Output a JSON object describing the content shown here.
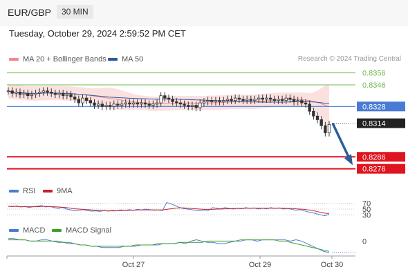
{
  "header": {
    "pair": "EUR/GBP",
    "timeframe": "30 MIN"
  },
  "datetime": "Tuesday, October 29, 2024 2:59:52 PM CET",
  "credit": "Research © 2024 Trading Central",
  "colors": {
    "up": "#333333",
    "down": "#333333",
    "bands": "#f7c6c6",
    "ma20": "#f08a8a",
    "ma50": "#2e5c9a",
    "support": "#e0141e",
    "resistance": "#6fb84a",
    "current": "#222222",
    "pivot": "#4a7bd4",
    "arrow": "#2e5c9a",
    "rsi": "#4a7bd4",
    "rsi_ma": "#cc1f2a",
    "macd": "#4a7bd4",
    "macd_signal": "#3f9e2a"
  },
  "chart_data": [
    {
      "type": "candlestick",
      "legend": [
        "MA 20 + Bollinger Bands",
        "MA 50"
      ],
      "ylim": [
        0.8266,
        0.8361
      ],
      "x_ticks": [
        "Oct 27",
        "Oct 29",
        "Oct 30"
      ],
      "resistance": [
        0.8356,
        0.8346
      ],
      "pivot": 0.8328,
      "current": 0.8314,
      "support": [
        0.8286,
        0.8276
      ],
      "price_labels": [
        "0.8356",
        "0.8346",
        "0.8328",
        "0.8314",
        "0.8286",
        "0.8276"
      ],
      "forecast": {
        "from": 0.8314,
        "to": 0.8279
      },
      "candles": [
        0.8341,
        0.8339,
        0.834,
        0.8338,
        0.8339,
        0.8337,
        0.8338,
        0.8339,
        0.834,
        0.8341,
        0.834,
        0.8339,
        0.8338,
        0.8339,
        0.8337,
        0.8338,
        0.8336,
        0.8334,
        0.8331,
        0.8335,
        0.8333,
        0.8331,
        0.8329,
        0.833,
        0.8328,
        0.8329,
        0.8328,
        0.833,
        0.8329,
        0.833,
        0.8331,
        0.833,
        0.8331,
        0.833,
        0.8331,
        0.833,
        0.8329,
        0.833,
        0.8331,
        0.8337,
        0.8335,
        0.8334,
        0.8332,
        0.8331,
        0.833,
        0.8329,
        0.8328,
        0.8329,
        0.8327,
        0.8331,
        0.8332,
        0.8333,
        0.8332,
        0.8333,
        0.8332,
        0.8333,
        0.8334,
        0.8333,
        0.8335,
        0.8334,
        0.8333,
        0.8334,
        0.8333,
        0.8334,
        0.8335,
        0.8334,
        0.8335,
        0.8334,
        0.8333,
        0.8334,
        0.8333,
        0.8335,
        0.8334,
        0.8332,
        0.8333,
        0.8331,
        0.833,
        0.8324,
        0.832,
        0.8317,
        0.8312,
        0.8306,
        0.8313
      ]
    },
    {
      "type": "line",
      "legend": [
        "RSI",
        "9MA"
      ],
      "y_ticks": [
        70,
        50,
        30
      ],
      "y_tick_labels": [
        "70",
        "50",
        "30"
      ],
      "ylim": [
        15,
        85
      ],
      "rsi": [
        60,
        58,
        61,
        57,
        59,
        55,
        58,
        60,
        62,
        57,
        59,
        55,
        52,
        56,
        50,
        47,
        44,
        46,
        48,
        45,
        43,
        44,
        42,
        45,
        43,
        46,
        44,
        47,
        45,
        48,
        46,
        49,
        47,
        50,
        48,
        46,
        47,
        45,
        72,
        68,
        62,
        56,
        52,
        50,
        48,
        46,
        44,
        47,
        45,
        55,
        53,
        51,
        55,
        52,
        50,
        53,
        51,
        55,
        52,
        54,
        50,
        53,
        51,
        55,
        52,
        54,
        50,
        52,
        49,
        46,
        48,
        44,
        40,
        38,
        34,
        30,
        28,
        32
      ],
      "rsi_ma": [
        59,
        59,
        59,
        58,
        58,
        58,
        58,
        58,
        59,
        59,
        58,
        58,
        57,
        56,
        55,
        53,
        51,
        50,
        49,
        48,
        47,
        46,
        45,
        45,
        44,
        44,
        44,
        45,
        45,
        46,
        46,
        47,
        47,
        47,
        47,
        47,
        47,
        47,
        49,
        51,
        53,
        54,
        54,
        53,
        52,
        51,
        50,
        49,
        49,
        49,
        50,
        50,
        51,
        51,
        52,
        52,
        52,
        53,
        53,
        53,
        53,
        53,
        53,
        53,
        53,
        53,
        53,
        52,
        52,
        51,
        50,
        49,
        47,
        45,
        42,
        39,
        36,
        35
      ]
    },
    {
      "type": "line",
      "legend": [
        "MACD",
        "MACD Signal"
      ],
      "y_ticks": [
        0
      ],
      "y_tick_labels": [
        "0"
      ],
      "ylim": [
        -0.001,
        0.0004
      ],
      "macd": [
        0.0002,
        0.0002,
        0.0001,
        0.0001,
        0.0,
        0.0,
        0.0001,
        0.0001,
        0.0,
        0.0,
        -0.0001,
        -0.0001,
        -0.0002,
        -0.0003,
        -0.0003,
        -0.0004,
        -0.0004,
        -0.0005,
        -0.0005,
        -0.0005,
        -0.0005,
        -0.0004,
        -0.0004,
        -0.0004,
        -0.0003,
        -0.0003,
        -0.0003,
        -0.0003,
        -0.0002,
        -0.0002,
        -0.0002,
        -0.0001,
        -0.0002,
        0.0,
        0.0001,
        0.0,
        -0.0001,
        -0.0001,
        -0.0002,
        -0.0002,
        -0.0001,
        0.0,
        0.0,
        0.0001,
        0.0001,
        0.0,
        0.0001,
        0.0001,
        0.0001,
        0.0001,
        0.0001,
        0.0,
        0.0001,
        0.0,
        -0.0002,
        -0.0004,
        -0.0006,
        -0.0008,
        -0.0009
      ],
      "macd_signal": [
        0.0001,
        0.0001,
        0.0001,
        0.0001,
        0.0,
        0.0,
        0.0,
        0.0,
        0.0,
        -0.0001,
        -0.0001,
        -0.0002,
        -0.0002,
        -0.0003,
        -0.0003,
        -0.0004,
        -0.0004,
        -0.0004,
        -0.0004,
        -0.0004,
        -0.0004,
        -0.0004,
        -0.0004,
        -0.0003,
        -0.0003,
        -0.0003,
        -0.0003,
        -0.0002,
        -0.0002,
        -0.0002,
        -0.0002,
        -0.0001,
        -0.0001,
        -0.0001,
        -0.0001,
        -0.0001,
        0.0,
        0.0,
        0.0,
        0.0,
        0.0,
        0.0,
        0.0001,
        0.0001,
        0.0001,
        0.0001,
        0.0001,
        0.0001,
        0.0001,
        0.0,
        0.0,
        -0.0001,
        -0.0002,
        -0.0003,
        -0.0004,
        -0.0005,
        -0.0006,
        -0.0007,
        -0.0008
      ]
    }
  ]
}
